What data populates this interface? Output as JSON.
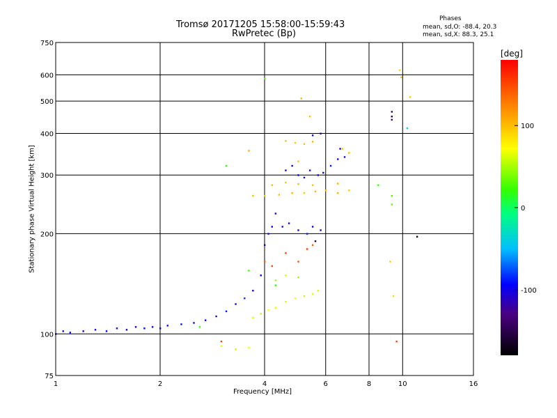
{
  "header": {
    "title_line1": "Tromsø 20171205 15:58:00-15:59:43",
    "title_line2": "RwPretec (Bp)",
    "phase_title": "Phases",
    "phase_o": "mean, sd,O: -88.4, 20.3",
    "phase_x": "mean, sd,X: 88.3, 25.1"
  },
  "chart_data": {
    "type": "scatter",
    "title": "Tromsø 20171205 15:58:00-15:59:43",
    "subtitle": "RwPretec (Bp)",
    "xlabel": "Frequency [MHz]",
    "ylabel": "Stationary phase Virtual Height [km]",
    "xscale": "log",
    "yscale": "log",
    "xlim": [
      1,
      16
    ],
    "ylim": [
      75,
      750
    ],
    "x_ticks": [
      1,
      2,
      4,
      6,
      8,
      10,
      16
    ],
    "y_ticks": [
      75,
      100,
      200,
      300,
      400,
      500,
      600,
      750
    ],
    "grid": true,
    "colorbar": {
      "label": "[deg]",
      "ticks": [
        100,
        0,
        -100
      ],
      "range": [
        -180,
        180
      ]
    },
    "series": [
      {
        "points": [
          [
            1.0,
            100,
            -100
          ],
          [
            1.05,
            102,
            -105
          ],
          [
            1.1,
            101,
            -95
          ],
          [
            1.2,
            102,
            -110
          ],
          [
            1.3,
            103,
            -100
          ],
          [
            1.4,
            102,
            -95
          ],
          [
            1.5,
            104,
            -105
          ],
          [
            1.6,
            103,
            -100
          ],
          [
            1.7,
            105,
            -110
          ],
          [
            1.8,
            104,
            -95
          ],
          [
            1.9,
            105,
            -100
          ],
          [
            2.0,
            104,
            -105
          ],
          [
            2.1,
            106,
            -100
          ],
          [
            2.3,
            107,
            -95
          ],
          [
            2.5,
            108,
            -105
          ],
          [
            2.7,
            110,
            -100
          ],
          [
            2.9,
            113,
            -110
          ],
          [
            3.1,
            117,
            -90
          ],
          [
            3.3,
            123,
            -100
          ],
          [
            3.5,
            128,
            -85
          ],
          [
            3.7,
            135,
            -105
          ],
          [
            3.9,
            150,
            -95
          ],
          [
            4.0,
            185,
            -110
          ],
          [
            4.1,
            200,
            -100
          ],
          [
            4.2,
            210,
            -95
          ],
          [
            4.3,
            230,
            -105
          ],
          [
            4.5,
            210,
            -100
          ],
          [
            4.7,
            215,
            -110
          ],
          [
            5.0,
            205,
            -95
          ],
          [
            5.3,
            200,
            -90
          ],
          [
            5.5,
            210,
            -100
          ],
          [
            5.8,
            205,
            -105
          ],
          [
            4.6,
            310,
            -100
          ],
          [
            4.8,
            320,
            -105
          ],
          [
            5.0,
            300,
            -95
          ],
          [
            5.2,
            295,
            -100
          ],
          [
            5.4,
            310,
            -110
          ],
          [
            5.7,
            300,
            -100
          ],
          [
            5.9,
            305,
            -95
          ],
          [
            6.2,
            320,
            -90
          ],
          [
            6.5,
            335,
            -100
          ],
          [
            6.8,
            340,
            -105
          ],
          [
            5.5,
            395,
            -100
          ],
          [
            5.8,
            400,
            -105
          ],
          [
            6.6,
            360,
            -100
          ],
          [
            9.3,
            440,
            -140
          ]
        ]
      },
      {
        "points": [
          [
            3.7,
            112,
            60
          ],
          [
            3.9,
            115,
            55
          ],
          [
            4.1,
            118,
            70
          ],
          [
            4.3,
            120,
            65
          ],
          [
            4.6,
            125,
            60
          ],
          [
            4.9,
            128,
            70
          ],
          [
            5.2,
            130,
            55
          ],
          [
            5.5,
            132,
            65
          ],
          [
            5.7,
            135,
            60
          ],
          [
            4.3,
            145,
            50
          ],
          [
            4.6,
            150,
            60
          ],
          [
            5.0,
            148,
            45
          ],
          [
            3.0,
            92,
            65
          ],
          [
            3.3,
            90,
            55
          ],
          [
            3.6,
            91,
            70
          ]
        ]
      },
      {
        "points": [
          [
            4.6,
            175,
            150
          ],
          [
            5.0,
            165,
            145
          ],
          [
            5.3,
            180,
            155
          ],
          [
            4.0,
            165,
            140
          ],
          [
            4.2,
            160,
            150
          ],
          [
            5.5,
            185,
            140
          ],
          [
            9.6,
            95,
            150
          ],
          [
            3.0,
            95,
            150
          ]
        ]
      },
      {
        "points": [
          [
            3.7,
            260,
            100
          ],
          [
            4.0,
            260,
            95
          ],
          [
            4.4,
            262,
            100
          ],
          [
            4.8,
            265,
            105
          ],
          [
            5.2,
            265,
            95
          ],
          [
            5.6,
            268,
            100
          ],
          [
            6.0,
            270,
            100
          ],
          [
            6.5,
            265,
            105
          ],
          [
            7.0,
            270,
            95
          ],
          [
            4.2,
            280,
            100
          ],
          [
            4.6,
            285,
            95
          ],
          [
            5.0,
            282,
            100
          ],
          [
            5.5,
            280,
            100
          ],
          [
            6.5,
            283,
            105
          ],
          [
            4.6,
            380,
            100
          ],
          [
            4.9,
            375,
            95
          ],
          [
            5.2,
            372,
            100
          ],
          [
            5.5,
            378,
            105
          ],
          [
            5.0,
            330,
            100
          ],
          [
            6.7,
            360,
            95
          ],
          [
            7.0,
            350,
            100
          ],
          [
            3.6,
            355,
            110
          ],
          [
            9.8,
            620,
            90
          ],
          [
            9.9,
            590,
            100
          ],
          [
            10.5,
            515,
            95
          ],
          [
            5.1,
            510,
            100
          ],
          [
            5.4,
            450,
            100
          ],
          [
            9.2,
            165,
            95
          ],
          [
            9.4,
            130,
            90
          ]
        ]
      },
      {
        "points": [
          [
            3.1,
            320,
            20
          ],
          [
            4.0,
            585,
            25
          ],
          [
            9.3,
            260,
            25
          ],
          [
            9.3,
            245,
            30
          ],
          [
            8.5,
            280,
            20
          ],
          [
            3.6,
            155,
            20
          ],
          [
            4.3,
            140,
            20
          ],
          [
            2.6,
            105,
            20
          ],
          [
            10.3,
            415,
            -40
          ]
        ]
      },
      {
        "points": [
          [
            5.6,
            190,
            -160
          ],
          [
            9.3,
            450,
            -150
          ],
          [
            9.3,
            465,
            -145
          ],
          [
            11.0,
            196,
            -170
          ]
        ]
      }
    ]
  }
}
